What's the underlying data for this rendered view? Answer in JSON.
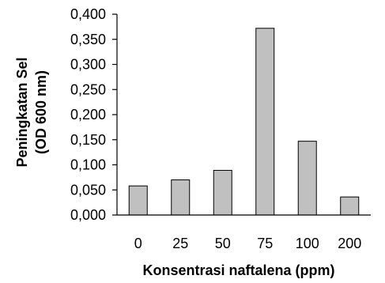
{
  "chart_data": {
    "type": "bar",
    "title": "",
    "categories": [
      "0",
      "25",
      "50",
      "75",
      "100",
      "200"
    ],
    "values": [
      0.058,
      0.07,
      0.089,
      0.372,
      0.147,
      0.036
    ],
    "ylabel_line1": "Peningkatan Sel",
    "ylabel_line2": "(OD 600 nm)",
    "xlabel": "Konsentrasi naftalena (ppm)",
    "ylim": [
      0,
      0.4
    ],
    "yticks": [
      "0,000",
      "0,050",
      "0,100",
      "0,150",
      "0,200",
      "0,250",
      "0,300",
      "0,350",
      "0,400"
    ],
    "bar_color": "#c0c0c0",
    "bar_edge_color": "#000000",
    "grid": false,
    "legend": "none"
  }
}
